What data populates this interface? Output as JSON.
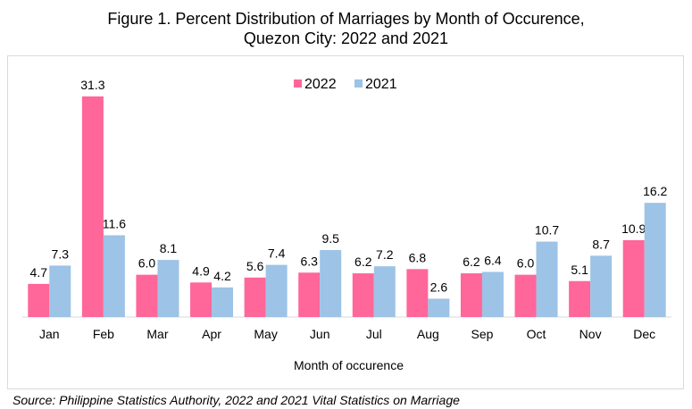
{
  "title": {
    "line1": "Figure 1. Percent Distribution of Marriages by Month of Occurence,",
    "line2": "Quezon City: 2022 and 2021"
  },
  "source": "Source: Philippine Statistics Authority, 2022 and 2021 Vital Statistics on Marriage",
  "chart_data": {
    "type": "bar",
    "categories": [
      "Jan",
      "Feb",
      "Mar",
      "Apr",
      "May",
      "Jun",
      "Jul",
      "Aug",
      "Sep",
      "Oct",
      "Nov",
      "Dec"
    ],
    "series": [
      {
        "name": "2022",
        "color": "#ff6699",
        "values": [
          4.7,
          31.3,
          6.0,
          4.9,
          5.6,
          6.3,
          6.2,
          6.8,
          6.2,
          6.0,
          5.1,
          10.9
        ]
      },
      {
        "name": "2021",
        "color": "#9dc3e6",
        "values": [
          7.3,
          11.6,
          8.1,
          4.2,
          7.4,
          9.5,
          7.2,
          2.6,
          6.4,
          10.7,
          8.7,
          16.2
        ]
      }
    ],
    "xlabel": "Month of occurence",
    "ylabel": "",
    "ylim": [
      0,
      31.3
    ],
    "grid": false,
    "legend": "top-center",
    "data_labels": true
  }
}
